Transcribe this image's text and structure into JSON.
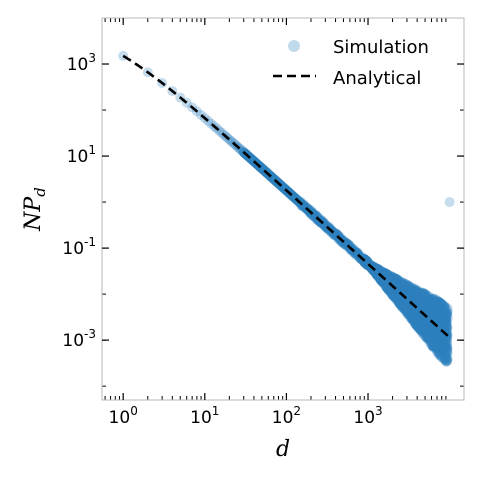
{
  "chart_data": {
    "type": "scatter",
    "xscale": "log",
    "yscale": "log",
    "xlim": [
      0.55,
      15000
    ],
    "ylim": [
      5e-05,
      10000
    ],
    "grid": false,
    "legend_position": "top-right",
    "xlabel": "d",
    "ylabel": "NP",
    "ylabel_subscript": "d",
    "x_ticks": [
      {
        "base": "10",
        "exp": "0",
        "value": 1
      },
      {
        "base": "10",
        "exp": "1",
        "value": 10
      },
      {
        "base": "10",
        "exp": "2",
        "value": 100
      },
      {
        "base": "10",
        "exp": "3",
        "value": 1000
      }
    ],
    "y_ticks": [
      {
        "base": "10",
        "exp": "3",
        "value": 1000
      },
      {
        "base": "10",
        "exp": "1",
        "value": 10
      },
      {
        "base": "10",
        "exp": "-1",
        "value": 0.1
      },
      {
        "base": "10",
        "exp": "-3",
        "value": 0.001
      }
    ],
    "series": [
      {
        "name": "Simulation",
        "kind": "scatter",
        "color": "#2f83bd",
        "opacity": 0.28,
        "alpha": 1.6,
        "k": 2,
        "noise_onset": 1000,
        "floor": 0.0001,
        "outlier": [
          10000,
          1
        ]
      },
      {
        "name": "Analytical",
        "kind": "dashed-line",
        "color": "#000000",
        "alpha": 1.6,
        "k": 2,
        "x_range": [
          1,
          10000
        ]
      }
    ]
  }
}
